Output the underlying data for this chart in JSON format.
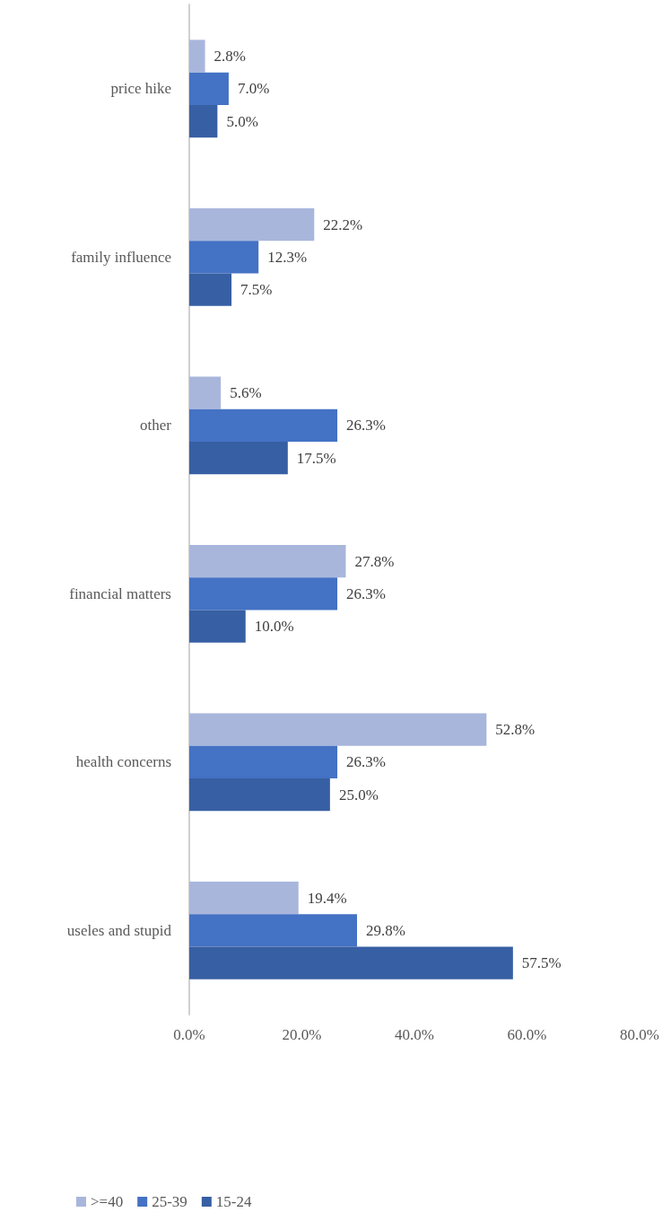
{
  "chart_data": {
    "type": "bar",
    "orientation": "horizontal",
    "categories": [
      "price hike",
      "family influence",
      "other",
      "financial matters",
      "health concerns",
      "useles and stupid"
    ],
    "series": [
      {
        "name": ">=40",
        "color": "#a9b6dc",
        "values": [
          2.8,
          22.2,
          5.6,
          27.8,
          52.8,
          19.4
        ],
        "value_labels": [
          "2.8%",
          "22.2%",
          "5.6%",
          "27.8%",
          "52.8%",
          "19.4%"
        ]
      },
      {
        "name": "25-39",
        "color": "#4472c4",
        "values": [
          7.0,
          12.3,
          26.3,
          26.3,
          26.3,
          29.8
        ],
        "value_labels": [
          "7.0%",
          "12.3%",
          "26.3%",
          "26.3%",
          "26.3%",
          "29.8%"
        ]
      },
      {
        "name": "15-24",
        "color": "#375fa3",
        "values": [
          5.0,
          7.5,
          17.5,
          10.0,
          25.0,
          57.5
        ],
        "value_labels": [
          "5.0%",
          "7.5%",
          "17.5%",
          "10.0%",
          "25.0%",
          "57.5%"
        ]
      }
    ],
    "xlim": [
      0,
      80
    ],
    "xticks": [
      {
        "value": 0,
        "label": "0.0%"
      },
      {
        "value": 20,
        "label": "20.0%"
      },
      {
        "value": 40,
        "label": "40.0%"
      },
      {
        "value": 60,
        "label": "60.0%"
      },
      {
        "value": 80,
        "label": "80.0%"
      }
    ],
    "grid": false,
    "legend": "bottom left"
  }
}
